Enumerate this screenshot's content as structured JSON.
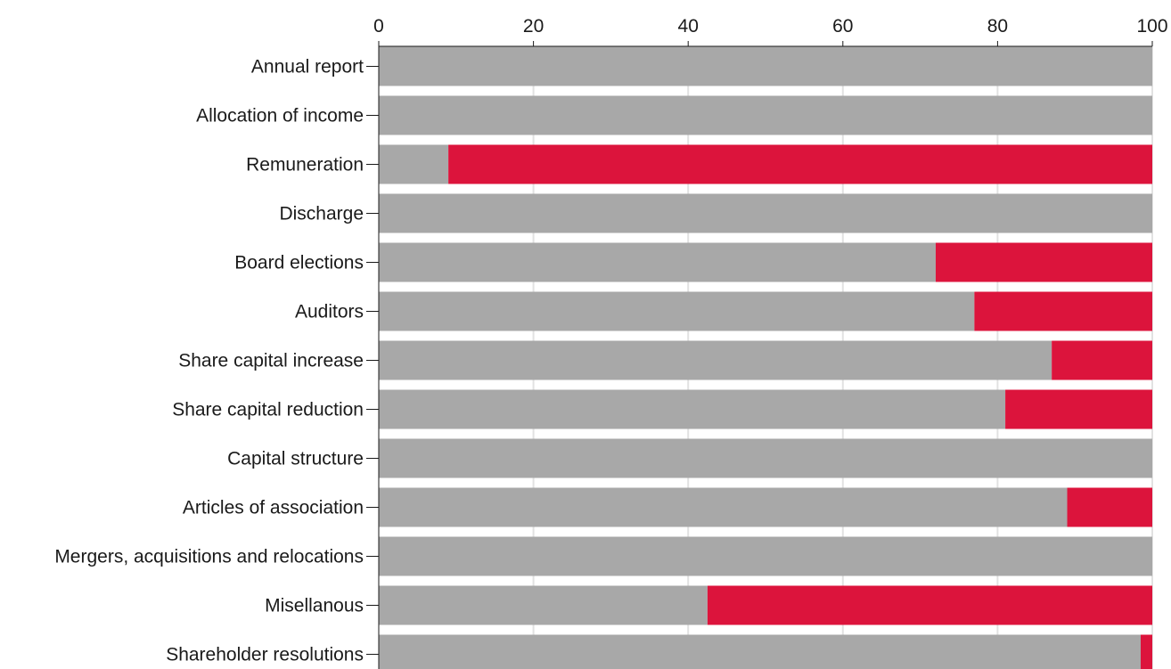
{
  "chart_data": {
    "type": "bar",
    "orientation": "horizontal",
    "stacked": true,
    "xlim": [
      0,
      100
    ],
    "x_ticks": [
      0,
      20,
      40,
      60,
      80,
      100
    ],
    "x_tick_labels": [
      "0",
      "20",
      "40",
      "60",
      "80",
      "100"
    ],
    "x_axis_position": "top",
    "grid": true,
    "title": "",
    "xlabel": "",
    "ylabel": "",
    "categories": [
      "Annual report",
      "Allocation of income",
      "Remuneration",
      "Discharge",
      "Board elections",
      "Auditors",
      "Share capital increase",
      "Share capital reduction",
      "Capital structure",
      "Articles of association",
      "Mergers, acquisitions and relocations",
      "Misellanous",
      "Shareholder resolutions"
    ],
    "series": [
      {
        "color": "#a8a8a8",
        "values": [
          100,
          100,
          9,
          100,
          72,
          77,
          87,
          81,
          100,
          89,
          100,
          42.5,
          98.5
        ]
      },
      {
        "color": "#dc143c",
        "values": [
          0,
          0,
          91,
          0,
          28,
          23,
          13,
          19,
          0,
          11,
          0,
          57.5,
          1.5
        ]
      }
    ]
  }
}
